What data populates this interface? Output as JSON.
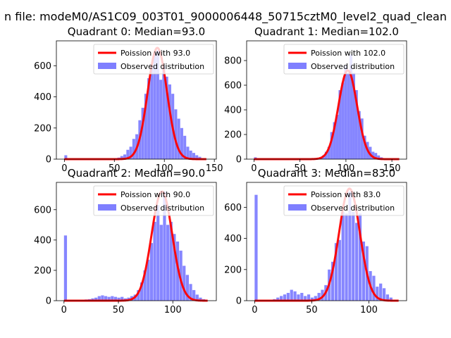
{
  "figure": {
    "suptitle": "n file: modeM0/AS1C09_003T01_9000006448_50715cztM0_level2_quad_clean"
  },
  "colors": {
    "hist": "#7f7fff",
    "fit": "#ff0000",
    "axis": "#000000",
    "legend_border": "#cccccc"
  },
  "chart_data": [
    {
      "type": "bar",
      "title": "Quadrant 0: Median=93.0",
      "xlim": [
        -8,
        152
      ],
      "ylim": [
        0,
        760
      ],
      "xticks": [
        0,
        50,
        100,
        150
      ],
      "yticks": [
        0,
        200,
        400,
        600
      ],
      "legend": {
        "placement": "top-right",
        "entries": [
          "Poission with 93.0",
          "Observed distribution"
        ]
      },
      "hist": {
        "bin_width": 2.85,
        "bins": [
          [
            0,
            25
          ],
          [
            50,
            5
          ],
          [
            53,
            10
          ],
          [
            56,
            20
          ],
          [
            59,
            30
          ],
          [
            62,
            60
          ],
          [
            65,
            80
          ],
          [
            68,
            130
          ],
          [
            71,
            160
          ],
          [
            74,
            250
          ],
          [
            77,
            330
          ],
          [
            80,
            420
          ],
          [
            83,
            520
          ],
          [
            86,
            600
          ],
          [
            89,
            690
          ],
          [
            92,
            700
          ],
          [
            95,
            510
          ],
          [
            98,
            600
          ],
          [
            101,
            530
          ],
          [
            104,
            480
          ],
          [
            107,
            420
          ],
          [
            110,
            320
          ],
          [
            113,
            260
          ],
          [
            116,
            200
          ],
          [
            119,
            150
          ],
          [
            122,
            80
          ],
          [
            125,
            55
          ],
          [
            128,
            40
          ],
          [
            131,
            25
          ],
          [
            134,
            15
          ],
          [
            137,
            5
          ]
        ]
      },
      "poisson": {
        "mean": 93.0,
        "peak": 715,
        "x_range": [
          0,
          142
        ]
      }
    },
    {
      "type": "bar",
      "title": "Quadrant 1: Median=102.0",
      "xlim": [
        -8,
        166
      ],
      "ylim": [
        0,
        960
      ],
      "xticks": [
        0,
        50,
        100,
        150
      ],
      "yticks": [
        0,
        200,
        400,
        600,
        800
      ],
      "legend": {
        "placement": "top-right",
        "entries": [
          "Poission with 102.0",
          "Observed distribution"
        ]
      },
      "hist": {
        "bin_width": 3.0,
        "bins": [
          [
            0,
            15
          ],
          [
            65,
            5
          ],
          [
            68,
            10
          ],
          [
            71,
            15
          ],
          [
            74,
            30
          ],
          [
            77,
            60
          ],
          [
            80,
            100
          ],
          [
            83,
            220
          ],
          [
            86,
            300
          ],
          [
            89,
            360
          ],
          [
            92,
            560
          ],
          [
            95,
            620
          ],
          [
            98,
            760
          ],
          [
            101,
            700
          ],
          [
            104,
            850
          ],
          [
            107,
            700
          ],
          [
            110,
            560
          ],
          [
            113,
            390
          ],
          [
            116,
            330
          ],
          [
            119,
            190
          ],
          [
            122,
            140
          ],
          [
            125,
            100
          ],
          [
            128,
            60
          ],
          [
            131,
            50
          ],
          [
            134,
            30
          ],
          [
            137,
            15
          ]
        ]
      },
      "poisson": {
        "mean": 102.0,
        "peak": 720,
        "x_range": [
          0,
          158
        ]
      }
    },
    {
      "type": "bar",
      "title": "Quadrant 2: Median=90.0",
      "xlim": [
        -7,
        140
      ],
      "ylim": [
        0,
        780
      ],
      "xticks": [
        0,
        50,
        100
      ],
      "yticks": [
        0,
        200,
        400,
        600
      ],
      "legend": {
        "placement": "top-right",
        "entries": [
          "Poission with 90.0",
          "Observed distribution"
        ]
      },
      "hist": {
        "bin_width": 2.75,
        "bins": [
          [
            0,
            430
          ],
          [
            16,
            5
          ],
          [
            19,
            8
          ],
          [
            22,
            10
          ],
          [
            25,
            15
          ],
          [
            28,
            20
          ],
          [
            31,
            30
          ],
          [
            34,
            35
          ],
          [
            37,
            30
          ],
          [
            40,
            25
          ],
          [
            43,
            30
          ],
          [
            46,
            25
          ],
          [
            49,
            20
          ],
          [
            52,
            25
          ],
          [
            55,
            15
          ],
          [
            58,
            20
          ],
          [
            61,
            30
          ],
          [
            64,
            40
          ],
          [
            67,
            70
          ],
          [
            70,
            120
          ],
          [
            73,
            200
          ],
          [
            76,
            270
          ],
          [
            79,
            380
          ],
          [
            82,
            520
          ],
          [
            85,
            630
          ],
          [
            88,
            500
          ],
          [
            91,
            720
          ],
          [
            94,
            500
          ],
          [
            97,
            520
          ],
          [
            100,
            440
          ],
          [
            103,
            390
          ],
          [
            106,
            330
          ],
          [
            109,
            230
          ],
          [
            112,
            170
          ],
          [
            115,
            110
          ],
          [
            118,
            70
          ],
          [
            121,
            40
          ],
          [
            124,
            20
          ],
          [
            127,
            10
          ]
        ]
      },
      "poisson": {
        "mean": 90.0,
        "peak": 720,
        "x_range": [
          0,
          132
        ]
      }
    },
    {
      "type": "bar",
      "title": "Quadrant 3: Median=83.0",
      "xlim": [
        -7,
        133
      ],
      "ylim": [
        0,
        760
      ],
      "xticks": [
        0,
        50,
        100
      ],
      "yticks": [
        0,
        200,
        400,
        600
      ],
      "legend": {
        "placement": "top-right",
        "entries": [
          "Poission with 83.0",
          "Observed distribution"
        ]
      },
      "hist": {
        "bin_width": 2.6,
        "bins": [
          [
            0,
            680
          ],
          [
            16,
            10
          ],
          [
            19,
            20
          ],
          [
            22,
            30
          ],
          [
            25,
            40
          ],
          [
            28,
            50
          ],
          [
            31,
            70
          ],
          [
            34,
            60
          ],
          [
            37,
            40
          ],
          [
            40,
            50
          ],
          [
            43,
            30
          ],
          [
            46,
            40
          ],
          [
            49,
            20
          ],
          [
            52,
            30
          ],
          [
            55,
            50
          ],
          [
            58,
            70
          ],
          [
            61,
            100
          ],
          [
            64,
            200
          ],
          [
            67,
            250
          ],
          [
            70,
            370
          ],
          [
            73,
            390
          ],
          [
            76,
            570
          ],
          [
            79,
            560
          ],
          [
            82,
            700
          ],
          [
            85,
            570
          ],
          [
            88,
            500
          ],
          [
            91,
            560
          ],
          [
            94,
            380
          ],
          [
            97,
            350
          ],
          [
            100,
            190
          ],
          [
            103,
            160
          ],
          [
            106,
            90
          ],
          [
            109,
            110
          ],
          [
            112,
            80
          ],
          [
            115,
            40
          ],
          [
            118,
            20
          ]
        ]
      },
      "poisson": {
        "mean": 83.0,
        "peak": 720,
        "x_range": [
          0,
          126
        ]
      }
    }
  ]
}
